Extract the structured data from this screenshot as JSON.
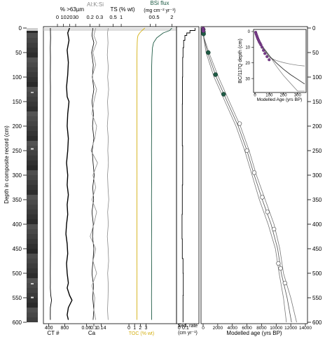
{
  "chart_data": {
    "type": "line",
    "title": "",
    "y_axis": {
      "label": "Depth in composite record (cm)",
      "range": [
        0,
        600
      ],
      "ticks": [
        0,
        50,
        100,
        150,
        200,
        250,
        300,
        350,
        400,
        450,
        500,
        550,
        600
      ],
      "tick_labels": [
        "0",
        "50",
        "100",
        "150",
        "200",
        "250",
        "300",
        "350",
        "400",
        "450",
        "500",
        "550",
        "600"
      ]
    },
    "right_axis": {
      "ticks": [
        0,
        50,
        100,
        150,
        200,
        250,
        300,
        350,
        400,
        450,
        500,
        550,
        600
      ],
      "tick_labels": [
        "0",
        "50",
        "100",
        "150",
        "200",
        "250",
        "300",
        "350",
        "400",
        "450",
        "500",
        "550",
        "600"
      ]
    },
    "ct_ca_panel": {
      "ct_label": "CT #",
      "ct_ticks": [
        "400",
        "800"
      ],
      "ct_tick_values": [
        400,
        800
      ],
      "ct_range": [
        300,
        900
      ],
      "ca_label": "Ca",
      "ca_ticks": [
        "0.06",
        "0.1",
        "0.14"
      ],
      "ca_tick_values": [
        0.06,
        0.1,
        0.14
      ],
      "ca_range": [
        0.04,
        0.16
      ],
      "coarse_label": "% >63µm",
      "coarse_ticks": [
        "0",
        "10",
        "20",
        "30"
      ],
      "coarse_tick_values": [
        0,
        10,
        20,
        30
      ],
      "coarse_range": [
        0,
        30
      ],
      "alksi_label": "Al:K:Si",
      "alksi_ticks": [
        "0.2",
        "0.3"
      ],
      "alksi_tick_values": [
        0.2,
        0.3
      ],
      "alksi_range": [
        0.12,
        0.36
      ],
      "ts_label": "TS (% wt)",
      "ts_ticks": [
        "0.5",
        "1"
      ],
      "ts_tick_values": [
        0.5,
        1
      ],
      "ts_range": [
        0,
        1.3
      ],
      "toc_label": "TOC (% wt)",
      "toc_ticks": [
        "0",
        "1",
        "2",
        "3"
      ],
      "toc_tick_values": [
        0,
        1,
        2,
        3
      ],
      "toc_range": [
        -0.5,
        3.8
      ],
      "bsi_label_1": "BSi flux",
      "bsi_label_2": "(mg cm⁻² yr⁻¹)",
      "bsi_ticks": [
        "0",
        "0.5",
        "2"
      ],
      "bsi_tick_values": [
        0,
        0.5,
        2
      ],
      "bsi_range": [
        -0.3,
        2.3
      ],
      "colors": {
        "ct": "#000000",
        "coarse": "#000000",
        "ca": "#000000",
        "alksi": "#8a8a8a",
        "ts": "#8a8a8a",
        "toc": "#d4b012",
        "bsi": "#1f5b45"
      },
      "series": {
        "ct": {
          "depth": [
            0,
            20,
            40,
            60,
            80,
            100,
            120,
            150,
            180,
            200,
            250,
            300,
            350,
            400,
            450,
            500,
            520,
            530,
            545,
            555,
            570,
            585,
            595
          ],
          "value": [
            440,
            445,
            438,
            442,
            440,
            437,
            441,
            439,
            440,
            438,
            440,
            437,
            440,
            439,
            441,
            438,
            440,
            437,
            450,
            470,
            440,
            438,
            440
          ]
        },
        "coarse": {
          "depth": [
            0,
            10,
            25,
            45,
            70,
            95,
            120,
            140,
            150,
            175,
            200,
            225,
            250,
            275,
            300,
            320,
            340,
            360,
            380,
            400,
            420,
            440,
            460,
            480,
            500,
            520,
            530,
            545,
            555,
            570,
            585,
            595
          ],
          "value": [
            20,
            17,
            19,
            16,
            18,
            17,
            15,
            16,
            19,
            17,
            16,
            18,
            17,
            15,
            17,
            16,
            18,
            16,
            17,
            15,
            14,
            16,
            17,
            15,
            16,
            18,
            16,
            20,
            24,
            18,
            16,
            18
          ]
        },
        "ca": {
          "depth": [
            0,
            15,
            30,
            50,
            75,
            100,
            125,
            150,
            175,
            200,
            225,
            250,
            275,
            300,
            325,
            350,
            375,
            400,
            425,
            450,
            475,
            500,
            525,
            550,
            575,
            595
          ],
          "value": [
            0.095,
            0.09,
            0.1,
            0.088,
            0.097,
            0.092,
            0.1,
            0.09,
            0.098,
            0.093,
            0.1,
            0.091,
            0.096,
            0.102,
            0.094,
            0.099,
            0.09,
            0.097,
            0.093,
            0.1,
            0.095,
            0.09,
            0.098,
            0.094,
            0.1,
            0.096
          ]
        },
        "alksi": {
          "depth": [
            0,
            15,
            30,
            50,
            75,
            100,
            125,
            150,
            175,
            200,
            225,
            250,
            275,
            300,
            325,
            350,
            375,
            400,
            425,
            450,
            475,
            500,
            525,
            550,
            575,
            595
          ],
          "value": [
            0.26,
            0.24,
            0.27,
            0.23,
            0.26,
            0.22,
            0.27,
            0.24,
            0.22,
            0.27,
            0.25,
            0.21,
            0.28,
            0.23,
            0.26,
            0.22,
            0.27,
            0.24,
            0.2,
            0.26,
            0.23,
            0.27,
            0.22,
            0.25,
            0.24,
            0.26
          ]
        },
        "ts": {
          "depth": [
            0,
            10,
            30,
            55,
            80,
            100,
            125,
            150,
            175,
            200,
            225,
            250,
            275,
            300,
            325,
            350,
            375,
            400,
            425,
            450,
            475,
            500,
            525,
            550,
            575,
            595
          ],
          "value": [
            0.2,
            0.15,
            0.18,
            0.14,
            0.2,
            0.16,
            0.22,
            0.15,
            0.19,
            0.14,
            0.2,
            0.17,
            0.21,
            0.15,
            0.18,
            0.23,
            0.16,
            0.2,
            0.14,
            0.19,
            0.22,
            0.16,
            0.2,
            0.18,
            0.15,
            0.19
          ]
        },
        "toc": {
          "depth": [
            0,
            5,
            10,
            15,
            20,
            30,
            50,
            75,
            100,
            150,
            200,
            250,
            300,
            350,
            400,
            450,
            500,
            550,
            595
          ],
          "value": [
            2.8,
            2.3,
            1.9,
            1.6,
            1.5,
            1.45,
            1.42,
            1.4,
            1.42,
            1.4,
            1.41,
            1.4,
            1.42,
            1.4,
            1.41,
            1.4,
            1.42,
            1.4,
            1.41
          ]
        },
        "bsi": {
          "depth": [
            0,
            5,
            10,
            20,
            30,
            40,
            60,
            80,
            100,
            150,
            200,
            250,
            300,
            350,
            400,
            450,
            500,
            550,
            595
          ],
          "value": [
            2.0,
            1.8,
            1.2,
            0.6,
            0.3,
            0.2,
            0.15,
            0.12,
            0.12,
            0.11,
            0.12,
            0.11,
            0.12,
            0.11,
            0.12,
            0.11,
            0.12,
            0.11,
            0.12
          ]
        }
      }
    },
    "sed_rate_panel": {
      "label_1": "Sed. rate",
      "label_2": "(cm yr⁻¹)",
      "ticks": [
        "0",
        "0.1"
      ],
      "tick_values": [
        0,
        0.1
      ],
      "range": [
        -0.02,
        0.3
      ],
      "steps": [
        {
          "from": 0,
          "to": 5,
          "rate": 0.25
        },
        {
          "from": 5,
          "to": 10,
          "rate": 0.17
        },
        {
          "from": 10,
          "to": 15,
          "rate": 0.12
        },
        {
          "from": 15,
          "to": 25,
          "rate": 0.09
        },
        {
          "from": 25,
          "to": 40,
          "rate": 0.07
        },
        {
          "from": 40,
          "to": 60,
          "rate": 0.06
        },
        {
          "from": 60,
          "to": 100,
          "rate": 0.055
        },
        {
          "from": 100,
          "to": 155,
          "rate": 0.052
        },
        {
          "from": 155,
          "to": 240,
          "rate": 0.05
        },
        {
          "from": 240,
          "to": 320,
          "rate": 0.055
        },
        {
          "from": 320,
          "to": 380,
          "rate": 0.05
        },
        {
          "from": 380,
          "to": 430,
          "rate": 0.045
        },
        {
          "from": 430,
          "to": 470,
          "rate": 0.05
        },
        {
          "from": 470,
          "to": 500,
          "rate": 0.06
        },
        {
          "from": 500,
          "to": 545,
          "rate": 0.065
        },
        {
          "from": 545,
          "to": 600,
          "rate": 0.06
        }
      ]
    },
    "age_model_panel": {
      "xlabel": "Modelled age (yrs BP)",
      "x_range": [
        0,
        14000
      ],
      "x_ticks": [
        0,
        2000,
        4000,
        6000,
        8000,
        10000,
        12000,
        14000
      ],
      "x_tick_labels": [
        "0",
        "2000",
        "4000",
        "6000",
        "8000",
        "10000",
        "12000",
        "14000"
      ],
      "median": {
        "depth": [
          0,
          20,
          50,
          100,
          150,
          200,
          250,
          300,
          350,
          400,
          450,
          500,
          550,
          600
        ],
        "age": [
          0,
          100,
          600,
          1800,
          3300,
          4800,
          6000,
          7000,
          8100,
          9300,
          10200,
          10700,
          11500,
          12100
        ]
      },
      "upper": {
        "depth": [
          0,
          20,
          50,
          100,
          150,
          200,
          250,
          300,
          350,
          400,
          450,
          500,
          550,
          600
        ],
        "age": [
          0,
          120,
          800,
          2100,
          3600,
          5100,
          6300,
          7300,
          8500,
          9700,
          10500,
          11000,
          12000,
          12800
        ]
      },
      "lower": {
        "depth": [
          0,
          20,
          50,
          100,
          150,
          200,
          250,
          300,
          350,
          400,
          450,
          500,
          550,
          600
        ],
        "age": [
          0,
          80,
          400,
          1500,
          3000,
          4500,
          5700,
          6700,
          7700,
          8900,
          9900,
          10400,
          11000,
          11400
        ]
      },
      "green_points": [
        {
          "age": 10,
          "depth": 3
        },
        {
          "age": 30,
          "depth": 8
        },
        {
          "age": 60,
          "depth": 12
        },
        {
          "age": 700,
          "depth": 50
        },
        {
          "age": 1700,
          "depth": 95
        },
        {
          "age": 2800,
          "depth": 135
        }
      ],
      "white_points": [
        {
          "age": 5000,
          "depth": 195
        },
        {
          "age": 6000,
          "depth": 250
        },
        {
          "age": 7000,
          "depth": 295
        },
        {
          "age": 8100,
          "depth": 345
        },
        {
          "age": 8800,
          "depth": 375
        },
        {
          "age": 9700,
          "depth": 410
        },
        {
          "age": 10300,
          "depth": 480
        },
        {
          "age": 10600,
          "depth": 490
        },
        {
          "age": 11200,
          "depth": 520
        }
      ],
      "purple_points": [
        {
          "age": 5,
          "depth": 1
        },
        {
          "age": 15,
          "depth": 3
        },
        {
          "age": 30,
          "depth": 6
        }
      ]
    },
    "inset": {
      "ylabel": "BC/117Q depth (cm)",
      "xlabel": "Modelled Age (yrs BP)",
      "x_range": [
        0,
        350
      ],
      "x_ticks": [
        0,
        100,
        200,
        300
      ],
      "x_tick_labels": [
        "0",
        "100",
        "200",
        "300"
      ],
      "y_range": [
        0,
        38
      ],
      "y_ticks": [
        0,
        10,
        20,
        30
      ],
      "y_tick_labels": [
        "0",
        "10",
        "20",
        "30"
      ],
      "points": [
        {
          "age": 5,
          "depth": 0.5
        },
        {
          "age": 8,
          "depth": 1.5
        },
        {
          "age": 12,
          "depth": 2.5
        },
        {
          "age": 16,
          "depth": 3.5
        },
        {
          "age": 20,
          "depth": 4.5
        },
        {
          "age": 25,
          "depth": 5.5
        },
        {
          "age": 30,
          "depth": 6.5
        },
        {
          "age": 36,
          "depth": 7.5
        },
        {
          "age": 42,
          "depth": 8.5
        },
        {
          "age": 50,
          "depth": 10
        },
        {
          "age": 60,
          "depth": 12
        },
        {
          "age": 70,
          "depth": 14
        },
        {
          "age": 85,
          "depth": 16
        },
        {
          "age": 100,
          "depth": 18
        }
      ],
      "median": {
        "age": [
          0,
          20,
          50,
          100,
          150,
          200,
          250,
          300,
          350
        ],
        "depth": [
          0,
          4.2,
          9.5,
          15.5,
          20,
          24,
          27.5,
          30.5,
          33.5
        ]
      },
      "upper": {
        "age": [
          0,
          20,
          50,
          100,
          150,
          200,
          250,
          300,
          350
        ],
        "depth": [
          0,
          4.8,
          10.5,
          16.5,
          18.5,
          19.8,
          20.8,
          21.5,
          22
        ]
      },
      "lower": {
        "age": [
          0,
          20,
          50,
          100,
          150,
          200,
          250,
          300,
          350
        ],
        "depth": [
          0,
          4,
          9,
          15,
          22,
          28,
          33,
          38,
          38
        ]
      }
    }
  }
}
